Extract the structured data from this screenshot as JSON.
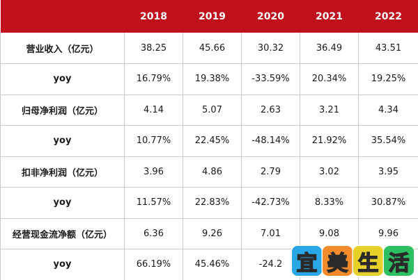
{
  "header": {
    "corner": "",
    "years": [
      "2018",
      "2019",
      "2020",
      "2021",
      "2022"
    ]
  },
  "rows": [
    {
      "label": "营业收入（亿元）",
      "values": [
        "38.25",
        "45.66",
        "30.32",
        "36.49",
        "43.51"
      ]
    },
    {
      "label": "yoy",
      "values": [
        "16.79%",
        "19.38%",
        "-33.59%",
        "20.34%",
        "19.25%"
      ]
    },
    {
      "label": "归母净利润（亿元）",
      "values": [
        "4.14",
        "5.07",
        "2.63",
        "3.21",
        "4.34"
      ]
    },
    {
      "label": "yoy",
      "values": [
        "10.77%",
        "22.45%",
        "-48.14%",
        "21.92%",
        "35.54%"
      ]
    },
    {
      "label": "扣非净利润（亿元）",
      "values": [
        "3.96",
        "4.86",
        "2.79",
        "3.02",
        "3.95"
      ]
    },
    {
      "label": "yoy",
      "values": [
        "11.57%",
        "22.83%",
        "-42.73%",
        "8.33%",
        "30.87%"
      ]
    },
    {
      "label": "经营现金流净额（亿元）",
      "values": [
        "6.36",
        "9.26",
        "7.01",
        "9.08",
        "9.96"
      ]
    },
    {
      "label": "yoy",
      "values": [
        "66.19%",
        "45.46%",
        "-24.2",
        "",
        ""
      ]
    }
  ],
  "watermark": {
    "chars": [
      "宜",
      "美",
      "生",
      "活"
    ],
    "colors": [
      "#2aa7e6",
      "#f38b2c",
      "#e7d02a",
      "#2fbf63"
    ]
  }
}
